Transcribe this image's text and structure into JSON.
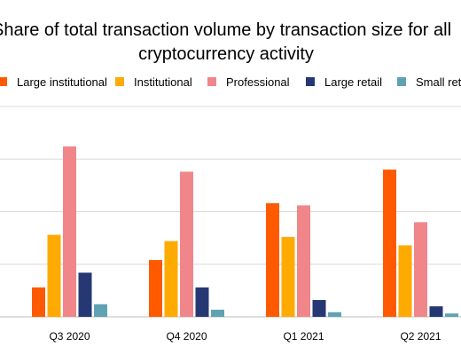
{
  "chart_data": {
    "type": "bar",
    "title_line1": "Share of total transaction volume by transaction size for all",
    "title_line2": "cryptocurrency activity",
    "categories": [
      "Q3 2020",
      "Q4 2020",
      "Q1 2021",
      "Q2 2021"
    ],
    "series": [
      {
        "name": "Large institutional",
        "color": "#FF5A00",
        "values": [
          7,
          13.5,
          27,
          35
        ]
      },
      {
        "name": "Institutional",
        "color": "#FFAA00",
        "values": [
          19.5,
          18,
          19,
          17
        ]
      },
      {
        "name": "Professional",
        "color": "#F0868A",
        "values": [
          40.5,
          34.5,
          26.5,
          22.5
        ]
      },
      {
        "name": "Large retail",
        "color": "#263873",
        "values": [
          10.5,
          7,
          4,
          2.5
        ]
      },
      {
        "name": "Small retail",
        "color": "#5FA3B3",
        "values": [
          3,
          1.7,
          1.1,
          0.8
        ]
      }
    ],
    "ylim": [
      0,
      50
    ],
    "grid": true,
    "legend_position": "top"
  }
}
